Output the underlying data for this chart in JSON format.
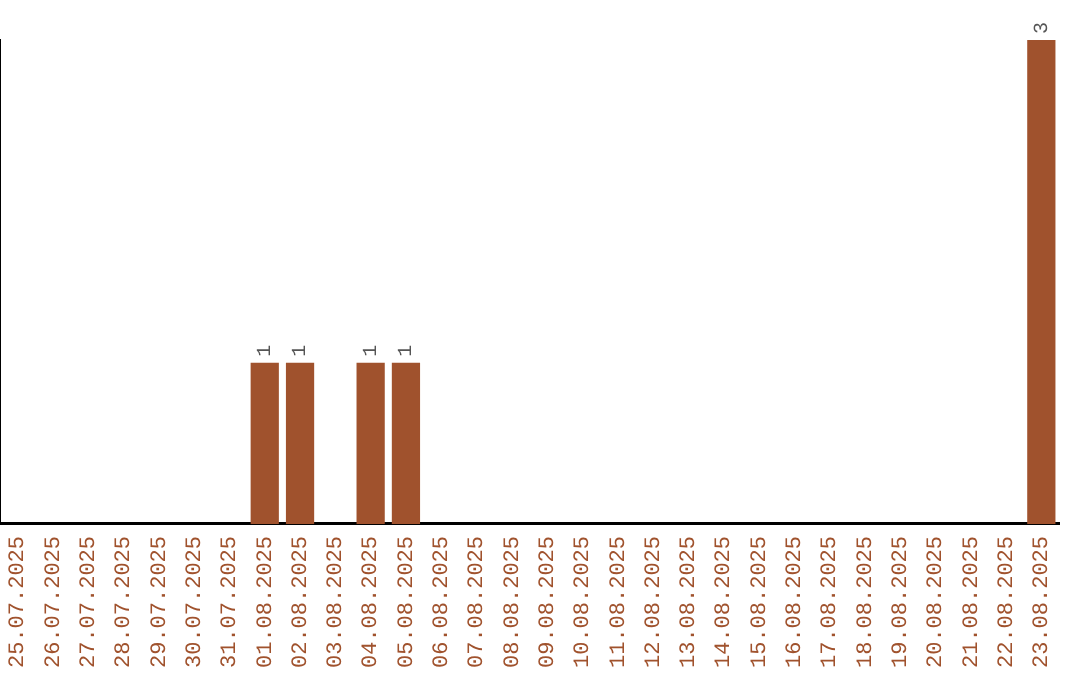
{
  "chart_data": {
    "type": "bar",
    "categories": [
      "25.07.2025",
      "26.07.2025",
      "27.07.2025",
      "28.07.2025",
      "29.07.2025",
      "30.07.2025",
      "31.07.2025",
      "01.08.2025",
      "02.08.2025",
      "03.08.2025",
      "04.08.2025",
      "05.08.2025",
      "06.08.2025",
      "07.08.2025",
      "08.08.2025",
      "09.08.2025",
      "10.08.2025",
      "11.08.2025",
      "12.08.2025",
      "13.08.2025",
      "14.08.2025",
      "15.08.2025",
      "16.08.2025",
      "17.08.2025",
      "18.08.2025",
      "19.08.2025",
      "20.08.2025",
      "21.08.2025",
      "22.08.2025",
      "23.08.2025"
    ],
    "values": [
      0,
      0,
      0,
      0,
      0,
      0,
      0,
      1,
      1,
      0,
      1,
      1,
      0,
      0,
      0,
      0,
      0,
      0,
      0,
      0,
      0,
      0,
      0,
      0,
      0,
      0,
      0,
      0,
      0,
      3
    ],
    "value_labels": [
      null,
      null,
      null,
      null,
      null,
      null,
      null,
      "1",
      "1",
      null,
      "1",
      "1",
      null,
      null,
      null,
      null,
      null,
      null,
      null,
      null,
      null,
      null,
      null,
      null,
      null,
      null,
      null,
      null,
      null,
      "3"
    ],
    "color": "#a0522d",
    "grid": false,
    "legend": false,
    "tick_labels": "x"
  }
}
